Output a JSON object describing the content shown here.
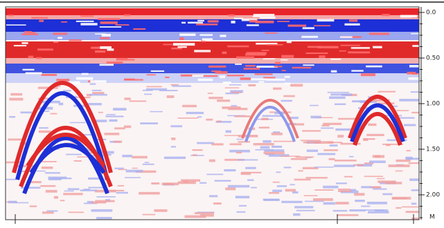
{
  "depth_axis": {
    "labels": [
      "0.0",
      "0.50",
      "1.00",
      "1.50",
      "2.00"
    ],
    "unit": "M"
  }
}
